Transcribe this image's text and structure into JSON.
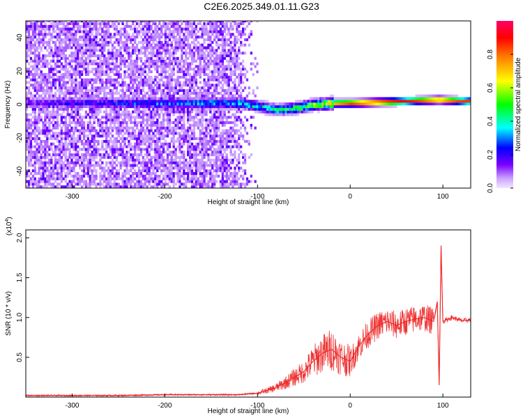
{
  "figure": {
    "title": "C2E6.2025.349.01.11.G23"
  },
  "chart_data": [
    {
      "type": "heatmap",
      "xlabel": "Height of straight line (km)",
      "ylabel": "Frequency (Hz)",
      "xlim": [
        -350,
        130
      ],
      "ylim": [
        -50,
        50
      ],
      "xticks": [
        -300,
        -200,
        -100,
        0,
        100
      ],
      "yticks": [
        -40,
        -20,
        0,
        20,
        40
      ],
      "colorbar": {
        "label": "Normalized spectral amplitude",
        "range": [
          0,
          1
        ],
        "ticks": [
          "0.0",
          "0.2",
          "0.4",
          "0.6",
          "0.8"
        ],
        "tick_values": [
          0.0,
          0.2,
          0.4,
          0.6,
          0.8
        ]
      },
      "features": {
        "broadband_noise_region_x": [
          -350,
          -100
        ],
        "fading_noise_region_x": [
          -130,
          -100
        ],
        "signal_center_hz": [
          {
            "x": -240,
            "hz": 0,
            "amp": 0.25
          },
          {
            "x": -180,
            "hz": 0,
            "amp": 0.3
          },
          {
            "x": -120,
            "hz": 0,
            "amp": 0.35
          },
          {
            "x": -80,
            "hz": -4,
            "amp": 0.4
          },
          {
            "x": -60,
            "hz": -3,
            "amp": 0.45
          },
          {
            "x": -40,
            "hz": -1,
            "amp": 0.55
          },
          {
            "x": -20,
            "hz": 0,
            "amp": 0.75
          },
          {
            "x": 0,
            "hz": 0,
            "amp": 0.9
          },
          {
            "x": 50,
            "hz": 1,
            "amp": 0.9
          },
          {
            "x": 95,
            "hz": 2,
            "amp": 0.85
          },
          {
            "x": 130,
            "hz": 1,
            "amp": 0.85
          }
        ]
      }
    },
    {
      "type": "line",
      "xlabel": "Height of straight line (km)",
      "ylabel": "SNR (10 * v/v)",
      "scale_label": "(x10",
      "scale_exponent": "4",
      "xlim": [
        -350,
        130
      ],
      "ylim": [
        0,
        2.1
      ],
      "xticks": [
        -300,
        -200,
        -100,
        0,
        100
      ],
      "yticks": [
        0.5,
        1.0,
        1.5,
        2.0
      ],
      "ytick_labels": [
        "0.5",
        "1.0",
        "1.5",
        "2.0"
      ],
      "series": [
        {
          "color": "#ee2222",
          "x": [
            -350,
            -300,
            -250,
            -200,
            -150,
            -120,
            -100,
            -90,
            -80,
            -70,
            -60,
            -50,
            -40,
            -30,
            -20,
            -10,
            0,
            10,
            20,
            30,
            40,
            50,
            60,
            70,
            80,
            90,
            94,
            96,
            98,
            100,
            110,
            120,
            130
          ],
          "y": [
            0.02,
            0.02,
            0.02,
            0.03,
            0.03,
            0.03,
            0.05,
            0.08,
            0.12,
            0.18,
            0.25,
            0.32,
            0.45,
            0.55,
            0.6,
            0.5,
            0.45,
            0.65,
            0.8,
            0.9,
            0.95,
            0.9,
            0.95,
            0.98,
            1.0,
            0.95,
            1.2,
            0.15,
            1.9,
            0.95,
            1.0,
            0.96,
            0.97
          ]
        }
      ]
    }
  ]
}
